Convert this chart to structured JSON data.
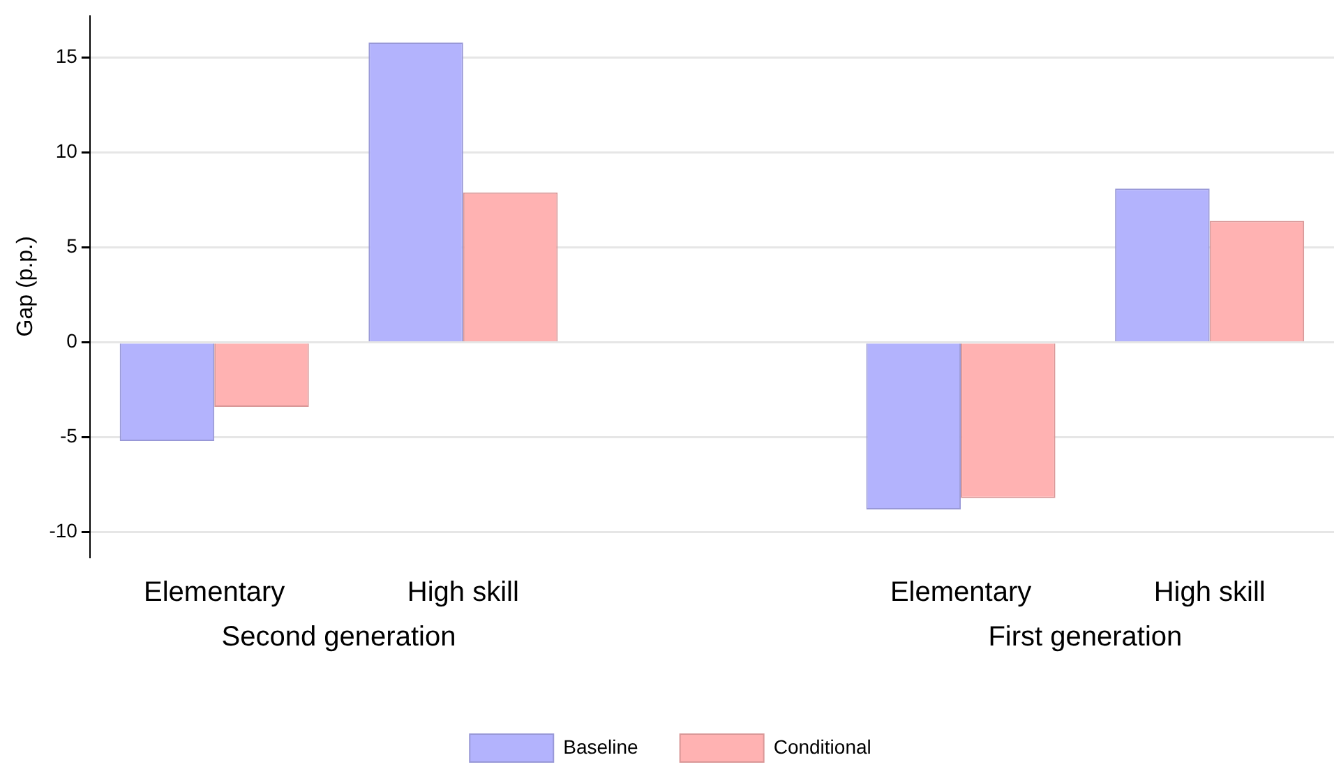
{
  "chart_data": {
    "type": "bar",
    "ylabel": "Gap (p.p.)",
    "categories": [
      "Elementary",
      "High skill",
      null,
      "Elementary",
      "High skill"
    ],
    "series": [
      {
        "name": "Baseline",
        "color": "#b3b3fd",
        "values": [
          -5.2,
          15.8,
          null,
          -8.8,
          8.1
        ]
      },
      {
        "name": "Conditional",
        "color": "#ffb2b2",
        "values": [
          -3.4,
          7.9,
          null,
          -8.2,
          6.4
        ]
      }
    ],
    "ylim": [
      -11.3,
      17.2
    ],
    "yticks": [
      -10,
      -5,
      0,
      5,
      10,
      15
    ],
    "grid": "y",
    "legend": "bottom",
    "annotations": [
      "Second generation",
      "First generation"
    ]
  }
}
